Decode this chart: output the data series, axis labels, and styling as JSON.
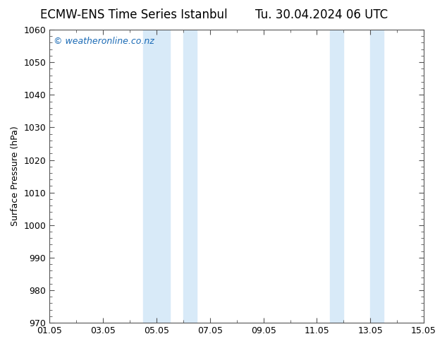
{
  "title_left": "ECMW-ENS Time Series Istanbul",
  "title_right": "Tu. 30.04.2024 06 UTC",
  "ylabel": "Surface Pressure (hPa)",
  "ylim": [
    970,
    1060
  ],
  "yticks": [
    970,
    980,
    990,
    1000,
    1010,
    1020,
    1030,
    1040,
    1050,
    1060
  ],
  "xtick_labels": [
    "01.05",
    "03.05",
    "05.05",
    "07.05",
    "09.05",
    "11.05",
    "13.05",
    "15.05"
  ],
  "xtick_positions": [
    0,
    2,
    4,
    6,
    8,
    10,
    12,
    14
  ],
  "xlim": [
    0,
    14
  ],
  "shade_bands": [
    {
      "x_start": 3.5,
      "x_end": 4.5
    },
    {
      "x_start": 5.0,
      "x_end": 5.5
    },
    {
      "x_start": 10.5,
      "x_end": 11.0
    },
    {
      "x_start": 12.0,
      "x_end": 12.5
    }
  ],
  "shade_color": "#d8eaf8",
  "background_color": "#ffffff",
  "plot_bg_color": "#ffffff",
  "watermark": "© weatheronline.co.nz",
  "watermark_color": "#1a6ab5",
  "title_fontsize": 12,
  "axis_fontsize": 9,
  "tick_fontsize": 9,
  "watermark_fontsize": 9,
  "spine_color": "#555555"
}
